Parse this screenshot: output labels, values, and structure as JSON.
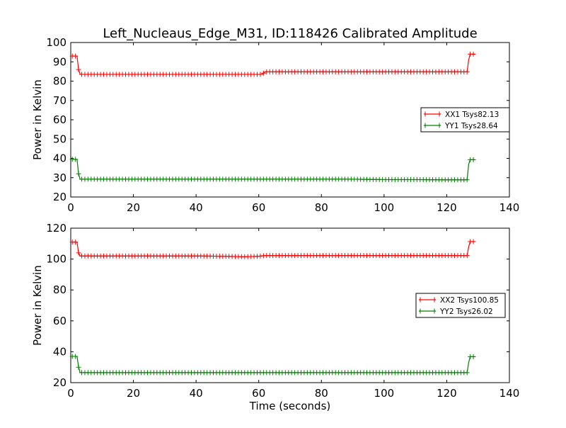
{
  "figure": {
    "title": "Left_Nucleaus_Edge_M31, ID:118426 Calibrated Amplitude",
    "xlabel": "Time (seconds)"
  },
  "chart_data": [
    {
      "type": "line",
      "ylabel": "Power in Kelvin",
      "xlim": [
        0,
        140
      ],
      "ylim": [
        20,
        100
      ],
      "xticks": [
        0,
        20,
        40,
        60,
        80,
        100,
        120,
        140
      ],
      "yticks": [
        20,
        30,
        40,
        50,
        60,
        70,
        80,
        90,
        100
      ],
      "legend_position": "center-right",
      "grid": false,
      "series": [
        {
          "name": "XX1 Tsys82.13",
          "color": "#ff0000",
          "marker": "plus",
          "x": [
            0.5,
            1,
            1.5,
            2,
            2.5,
            3,
            10,
            20,
            30,
            40,
            50,
            60,
            61,
            62,
            70,
            80,
            90,
            100,
            110,
            120,
            126,
            126.5,
            127,
            127.5,
            128,
            128.5,
            129
          ],
          "y": [
            93,
            93,
            93,
            93,
            86,
            83.5,
            83.5,
            83.5,
            83.5,
            83.5,
            83.5,
            83.5,
            83.5,
            84.8,
            84.8,
            84.8,
            84.8,
            84.8,
            84.8,
            84.8,
            84.8,
            84.8,
            91,
            94,
            94,
            94,
            94
          ]
        },
        {
          "name": "YY1 Tsys28.64",
          "color": "#008000",
          "marker": "plus",
          "x": [
            0.5,
            1,
            1.5,
            2,
            2.5,
            3,
            10,
            20,
            30,
            40,
            50,
            60,
            70,
            80,
            90,
            100,
            110,
            120,
            126,
            126.5,
            127,
            127.5,
            128,
            128.5,
            129
          ],
          "y": [
            39.5,
            39.5,
            39.5,
            39.5,
            32,
            29.2,
            29.2,
            29.2,
            29.2,
            29.2,
            29.2,
            29.2,
            29.2,
            29.2,
            29.2,
            29,
            29,
            28.9,
            28.9,
            28.9,
            37,
            39.3,
            39.3,
            39.3,
            39.3
          ]
        }
      ]
    },
    {
      "type": "line",
      "ylabel": "Power in Kelvin",
      "xlim": [
        0,
        140
      ],
      "ylim": [
        20,
        120
      ],
      "xticks": [
        0,
        20,
        40,
        60,
        80,
        100,
        120,
        140
      ],
      "yticks": [
        20,
        40,
        60,
        80,
        100,
        120
      ],
      "legend_position": "center-right",
      "grid": false,
      "series": [
        {
          "name": "XX2 Tsys100.85",
          "color": "#ff0000",
          "marker": "plus",
          "x": [
            0.5,
            1,
            1.5,
            2,
            2.5,
            3,
            10,
            20,
            30,
            40,
            50,
            55,
            60,
            62,
            70,
            80,
            90,
            100,
            110,
            120,
            126,
            126.5,
            127,
            127.5,
            128,
            128.5,
            129
          ],
          "y": [
            111,
            111,
            111,
            111,
            104,
            102,
            102,
            102,
            102,
            102,
            101.8,
            101.5,
            101.8,
            102.3,
            102.3,
            102.3,
            102.3,
            102.3,
            102.3,
            102.3,
            102.3,
            102.3,
            108,
            111.3,
            111.3,
            111.3,
            111.3
          ]
        },
        {
          "name": "YY2 Tsys26.02",
          "color": "#008000",
          "marker": "plus",
          "x": [
            0.5,
            1,
            1.5,
            2,
            2.5,
            3,
            10,
            20,
            30,
            40,
            50,
            60,
            70,
            80,
            90,
            100,
            110,
            120,
            126,
            126.5,
            127,
            127.5,
            128,
            128.5,
            129
          ],
          "y": [
            37,
            37,
            37,
            37,
            30,
            26.5,
            26.5,
            26.5,
            26.5,
            26.5,
            26.5,
            26.5,
            26.5,
            26.5,
            26.5,
            26.5,
            26.5,
            26.5,
            26.5,
            26.5,
            33,
            36.8,
            36.8,
            36.8,
            36.8
          ]
        }
      ]
    }
  ]
}
